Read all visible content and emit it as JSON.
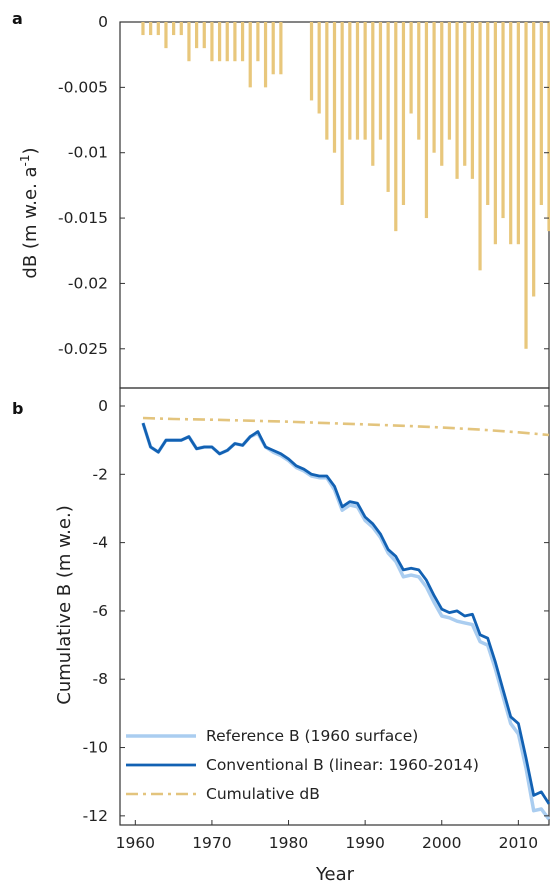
{
  "chart_data": [
    {
      "panel": "a",
      "type": "bar",
      "ylabel": "dB (m w.e. a",
      "ylabel_sup": "-1",
      "ylabel_end": ")",
      "ylim": [
        -0.028,
        0
      ],
      "xlim": [
        1958,
        2014
      ],
      "yticks": [
        0,
        -0.005,
        -0.01,
        -0.015,
        -0.02,
        -0.025
      ],
      "ytick_labels": [
        "0",
        "-0.005",
        "-0.01",
        "-0.015",
        "-0.02",
        "-0.025"
      ],
      "color": "#e8c77c",
      "x": [
        1961,
        1962,
        1963,
        1964,
        1965,
        1966,
        1967,
        1968,
        1969,
        1970,
        1971,
        1972,
        1973,
        1974,
        1975,
        1976,
        1977,
        1978,
        1979,
        1983,
        1984,
        1985,
        1986,
        1987,
        1988,
        1989,
        1990,
        1991,
        1992,
        1993,
        1994,
        1995,
        1996,
        1997,
        1998,
        1999,
        2000,
        2001,
        2002,
        2003,
        2004,
        2005,
        2006,
        2007,
        2008,
        2009,
        2010,
        2011,
        2012,
        2013,
        2014
      ],
      "values": [
        -0.001,
        -0.001,
        -0.001,
        -0.002,
        -0.001,
        -0.001,
        -0.003,
        -0.002,
        -0.002,
        -0.003,
        -0.003,
        -0.003,
        -0.003,
        -0.003,
        -0.005,
        -0.003,
        -0.005,
        -0.004,
        -0.004,
        -0.006,
        -0.007,
        -0.009,
        -0.01,
        -0.014,
        -0.009,
        -0.009,
        -0.009,
        -0.011,
        -0.009,
        -0.013,
        -0.016,
        -0.014,
        -0.007,
        -0.009,
        -0.015,
        -0.01,
        -0.011,
        -0.009,
        -0.012,
        -0.011,
        -0.012,
        -0.019,
        -0.014,
        -0.017,
        -0.015,
        -0.017,
        -0.017,
        -0.025,
        -0.021,
        -0.014,
        -0.016
      ]
    },
    {
      "panel": "b",
      "type": "line",
      "xlabel": "Year",
      "ylabel": "Cumulative B (m w.e.)",
      "ylim": [
        -13,
        0
      ],
      "xlim": [
        1958,
        2014
      ],
      "yticks": [
        0,
        -2,
        -4,
        -6,
        -8,
        -10,
        -12
      ],
      "ytick_labels": [
        "0",
        "-2",
        "-4",
        "-6",
        "-8",
        "-10",
        "-12"
      ],
      "xticks": [
        1960,
        1970,
        1980,
        1990,
        2000,
        2010
      ],
      "xtick_labels": [
        "1960",
        "1970",
        "1980",
        "1990",
        "2000",
        "2010"
      ],
      "legend_position": "bottom-left",
      "series": [
        {
          "name": "Reference B (1960 surface)",
          "color": "#aacdf0",
          "style": "solid",
          "x": [
            1961,
            1962,
            1963,
            1964,
            1965,
            1966,
            1967,
            1968,
            1969,
            1970,
            1971,
            1972,
            1973,
            1974,
            1975,
            1976,
            1977,
            1978,
            1979,
            1980,
            1981,
            1982,
            1983,
            1984,
            1985,
            1986,
            1987,
            1988,
            1989,
            1990,
            1991,
            1992,
            1993,
            1994,
            1995,
            1996,
            1997,
            1998,
            1999,
            2000,
            2001,
            2002,
            2003,
            2004,
            2005,
            2006,
            2007,
            2008,
            2009,
            2010,
            2011,
            2012,
            2013,
            2014
          ],
          "values": [
            -0.5,
            -1.2,
            -1.35,
            -1.0,
            -1.0,
            -1.0,
            -0.9,
            -1.25,
            -1.2,
            -1.2,
            -1.4,
            -1.3,
            -1.1,
            -1.15,
            -0.9,
            -0.8,
            -1.2,
            -1.35,
            -1.45,
            -1.6,
            -1.8,
            -1.9,
            -2.05,
            -2.1,
            -2.1,
            -2.45,
            -3.05,
            -2.9,
            -2.95,
            -3.35,
            -3.55,
            -3.85,
            -4.3,
            -4.55,
            -5.0,
            -4.95,
            -5.0,
            -5.3,
            -5.75,
            -6.15,
            -6.2,
            -6.3,
            -6.35,
            -6.4,
            -6.9,
            -7.0,
            -7.7,
            -8.5,
            -9.3,
            -9.6,
            -10.6,
            -11.85,
            -11.8,
            -12.1
          ]
        },
        {
          "name": "Conventional B (linear: 1960-2014)",
          "color": "#1261b3",
          "style": "solid",
          "x": [
            1961,
            1962,
            1963,
            1964,
            1965,
            1966,
            1967,
            1968,
            1969,
            1970,
            1971,
            1972,
            1973,
            1974,
            1975,
            1976,
            1977,
            1978,
            1979,
            1980,
            1981,
            1982,
            1983,
            1984,
            1985,
            1986,
            1987,
            1988,
            1989,
            1990,
            1991,
            1992,
            1993,
            1994,
            1995,
            1996,
            1997,
            1998,
            1999,
            2000,
            2001,
            2002,
            2003,
            2004,
            2005,
            2006,
            2007,
            2008,
            2009,
            2010,
            2011,
            2012,
            2013,
            2014
          ],
          "values": [
            -0.5,
            -1.2,
            -1.35,
            -1.0,
            -1.0,
            -1.0,
            -0.9,
            -1.25,
            -1.2,
            -1.2,
            -1.4,
            -1.3,
            -1.1,
            -1.15,
            -0.9,
            -0.75,
            -1.2,
            -1.3,
            -1.4,
            -1.55,
            -1.75,
            -1.85,
            -2.0,
            -2.05,
            -2.05,
            -2.35,
            -2.95,
            -2.8,
            -2.85,
            -3.25,
            -3.45,
            -3.75,
            -4.2,
            -4.4,
            -4.8,
            -4.75,
            -4.8,
            -5.1,
            -5.55,
            -5.95,
            -6.05,
            -6.0,
            -6.15,
            -6.1,
            -6.7,
            -6.8,
            -7.5,
            -8.3,
            -9.1,
            -9.3,
            -10.3,
            -11.4,
            -11.3,
            -11.65
          ]
        },
        {
          "name": "Cumulative dB",
          "color": "#e3c47d",
          "style": "dash-dot",
          "x": [
            1961,
            1965,
            1970,
            1975,
            1980,
            1985,
            1990,
            1995,
            2000,
            2005,
            2010,
            2014
          ],
          "values": [
            -0.35,
            -0.38,
            -0.4,
            -0.43,
            -0.46,
            -0.5,
            -0.54,
            -0.58,
            -0.63,
            -0.69,
            -0.77,
            -0.85
          ]
        }
      ]
    }
  ]
}
